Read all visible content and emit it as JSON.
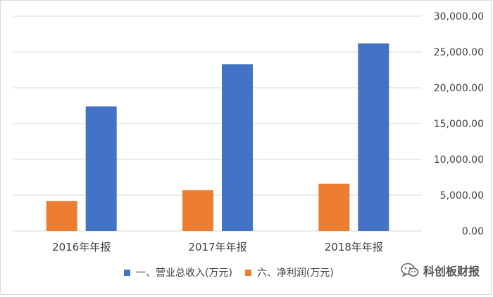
{
  "colors": {
    "revenue": "#4472C4",
    "profit": "#ED7D31",
    "grid": "#D9D9D9",
    "text": "#404040"
  },
  "chart_data": {
    "type": "bar",
    "categories": [
      "2016年年报",
      "2017年年报",
      "2018年年报"
    ],
    "series": [
      {
        "name": "六、净利润(万元)",
        "values": [
          4200,
          5700,
          6600
        ]
      },
      {
        "name": "一、营业总收入(万元)",
        "values": [
          17400,
          23300,
          26200
        ]
      }
    ],
    "ylim": [
      0,
      30000
    ],
    "yticks": [
      "0.00",
      "5,000.00",
      "10,000.00",
      "15,000.00",
      "20,000.00",
      "25,000.00",
      "30,000.00"
    ],
    "y_axis_side": "right",
    "grid": true,
    "legend_position": "bottom",
    "title": "",
    "xlabel": "",
    "ylabel": ""
  },
  "legend": {
    "items": [
      {
        "label": "一、营业总收入(万元)",
        "icon": "square-icon"
      },
      {
        "label": "六、净利润(万元)",
        "icon": "square-icon"
      }
    ]
  },
  "watermark": {
    "text": "科创板财报",
    "icon": "wechat-icon"
  }
}
